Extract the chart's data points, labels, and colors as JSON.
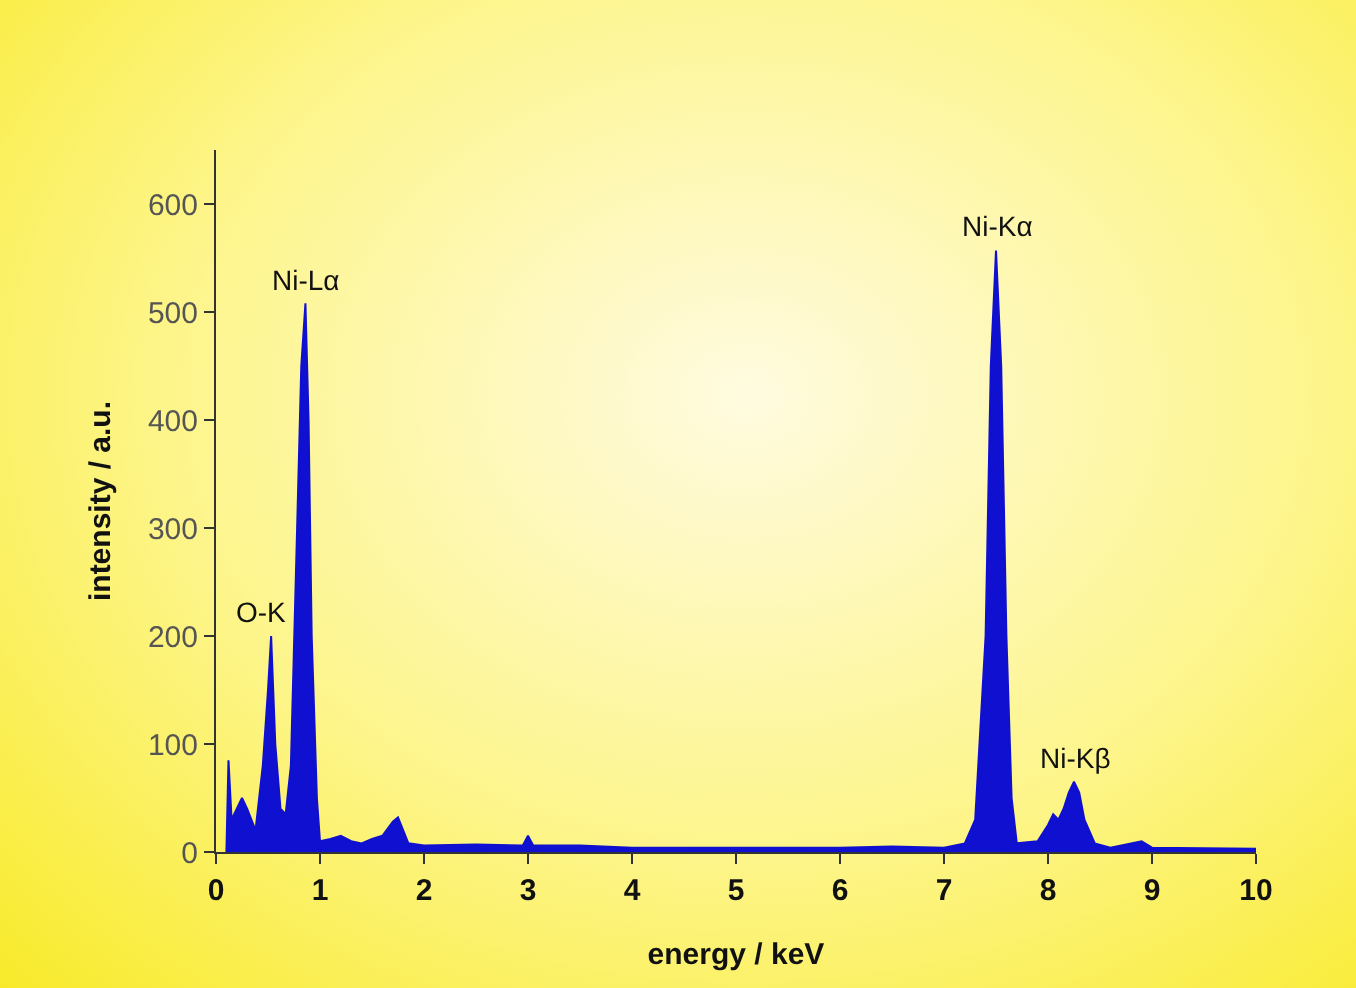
{
  "chart_data": {
    "type": "area",
    "xlabel": "energy / keV",
    "ylabel": "intensity / a.u.",
    "xlim": [
      0,
      10
    ],
    "xticks": [
      0,
      1,
      2,
      3,
      4,
      5,
      6,
      7,
      8,
      9,
      10
    ],
    "ylim": [
      0,
      650
    ],
    "yticks": [
      0,
      100,
      200,
      300,
      400,
      500,
      600
    ],
    "grid": false,
    "series": [
      {
        "color": "#1010d0",
        "x": [
          0.1,
          0.12,
          0.15,
          0.2,
          0.25,
          0.3,
          0.38,
          0.45,
          0.5,
          0.53,
          0.57,
          0.62,
          0.67,
          0.72,
          0.78,
          0.82,
          0.86,
          0.89,
          0.92,
          0.97,
          1.0,
          1.1,
          1.2,
          1.3,
          1.4,
          1.5,
          1.6,
          1.7,
          1.75,
          1.8,
          1.85,
          2.0,
          2.5,
          2.95,
          3.0,
          3.05,
          3.5,
          4.0,
          5.0,
          6.0,
          6.5,
          7.0,
          7.2,
          7.3,
          7.4,
          7.45,
          7.5,
          7.55,
          7.6,
          7.65,
          7.7,
          7.9,
          8.0,
          8.05,
          8.1,
          8.15,
          8.2,
          8.25,
          8.3,
          8.35,
          8.45,
          8.6,
          8.9,
          9.0,
          10.0
        ],
        "values": [
          0,
          85,
          30,
          40,
          50,
          40,
          20,
          80,
          150,
          200,
          100,
          40,
          35,
          80,
          300,
          450,
          508,
          400,
          200,
          50,
          10,
          12,
          15,
          10,
          8,
          12,
          15,
          28,
          32,
          20,
          8,
          6,
          7,
          6,
          15,
          6,
          6,
          4,
          4,
          4,
          5,
          4,
          8,
          30,
          200,
          450,
          557,
          450,
          200,
          50,
          8,
          10,
          25,
          35,
          30,
          40,
          55,
          65,
          55,
          30,
          8,
          4,
          10,
          4,
          3
        ]
      }
    ],
    "annotations": [
      {
        "text": "O-K",
        "x": 0.45,
        "y": 200
      },
      {
        "text": "Ni-Lα",
        "x": 0.86,
        "y": 508
      },
      {
        "text": "Ni-Kα",
        "x": 7.5,
        "y": 557
      },
      {
        "text": "Ni-Kβ",
        "x": 8.25,
        "y": 65
      }
    ]
  }
}
